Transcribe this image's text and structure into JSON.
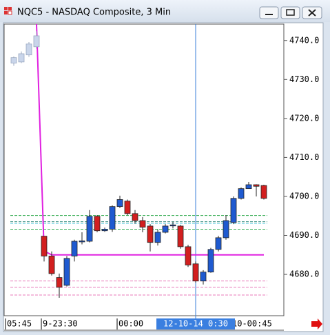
{
  "window_title": "NQC5 - NASDAQ Composite, 3 Min",
  "chart_data": {
    "type": "candlestick",
    "categories": [
      "05:45",
      null,
      null,
      null,
      "9-23:30",
      null,
      null,
      null,
      null,
      null,
      null,
      null,
      null,
      null,
      "00:00",
      null,
      null,
      null,
      null,
      null,
      null,
      null,
      null,
      null,
      null,
      null,
      null,
      null,
      null,
      "10-00:45",
      null,
      null,
      null,
      null
    ],
    "open": [
      4734.2,
      4734.5,
      4736.3,
      4738.4,
      4689.8,
      4684.7,
      4679.2,
      4677.2,
      4684.7,
      4688.4,
      4688.5,
      4694.9,
      4691.2,
      4691.6,
      4697.4,
      4698.8,
      4695.6,
      4693.8,
      4692.4,
      4688.2,
      4690.8,
      4692.5,
      4692.4,
      4687.1,
      4682.7,
      4678.3,
      4680.6,
      4686.4,
      4689.4,
      4693.3,
      4699.5,
      4702.0,
      4703.0,
      4702.8
    ],
    "high": [
      4735.9,
      4737.2,
      4739.6,
      4742.4,
      4689.8,
      4685.9,
      4680.2,
      4684.7,
      4688.9,
      4690.8,
      4696.5,
      4695.2,
      4692.0,
      4697.7,
      4700.2,
      4699.2,
      4696.5,
      4694.7,
      4692.9,
      4691.5,
      4692.9,
      4693.5,
      4692.7,
      4687.6,
      4683.3,
      4681.1,
      4686.8,
      4689.9,
      4695.2,
      4700.0,
      4702.3,
      4703.7,
      4703.1,
      4703.0
    ],
    "low": [
      4733.5,
      4734.2,
      4735.8,
      4737.9,
      4683.3,
      4679.7,
      4674.0,
      4676.9,
      4683.3,
      4687.7,
      4688.2,
      4690.8,
      4690.9,
      4690.9,
      4697.0,
      4695.2,
      4693.0,
      4690.8,
      4685.9,
      4687.4,
      4690.5,
      4691.8,
      4686.6,
      4681.9,
      4677.9,
      4677.4,
      4680.4,
      4685.9,
      4688.9,
      4692.9,
      4699.2,
      4702.6,
      4700.0,
      4699.2
    ],
    "close": [
      4735.6,
      4736.6,
      4739.1,
      4741.2,
      4684.7,
      4680.2,
      4676.7,
      4684.1,
      4688.5,
      4688.6,
      4694.9,
      4691.2,
      4691.6,
      4697.4,
      4699.2,
      4695.6,
      4693.8,
      4692.1,
      4688.2,
      4690.8,
      4692.4,
      4692.7,
      4687.1,
      4682.4,
      4678.3,
      4680.6,
      4686.4,
      4689.4,
      4693.8,
      4699.5,
      4702.0,
      4703.0,
      4702.6,
      4699.5
    ],
    "up_color": "#1f5ad0",
    "down_color": "#d21f1f",
    "pre_session_color": "#c9d5ea",
    "pre_session_candles": 4,
    "indicator": {
      "color": "#e020e0",
      "values": [
        null,
        null,
        null,
        4744.2,
        4686.0,
        4685.0,
        4685.0,
        4685.0,
        4685.0,
        4685.0,
        4685.0,
        4685.0,
        4685.0,
        4685.0,
        4685.0,
        4685.0,
        4685.0,
        4685.0,
        4685.0,
        4685.0,
        4685.0,
        4685.0,
        4685.0,
        4685.0,
        4685.0,
        4685.0,
        4685.0,
        4685.0,
        4685.0,
        4685.0,
        4685.0,
        4685.0,
        4685.0,
        4685.0
      ]
    },
    "levels": [
      {
        "value": 4695.1,
        "color": "#2aa84a"
      },
      {
        "value": 4693.5,
        "color": "#137a6a"
      },
      {
        "value": 4693.0,
        "color": "#7fd8e8"
      },
      {
        "value": 4691.6,
        "color": "#2aa84a"
      },
      {
        "value": 4678.3,
        "color": "#e87ab8"
      },
      {
        "value": 4676.7,
        "color": "#e87ab8"
      },
      {
        "value": 4674.7,
        "color": "#e87ab8"
      }
    ],
    "crosshair_label": "12-10-14 0:30",
    "ylim": [
      4669.4,
      4744.2
    ],
    "yticks": [
      {
        "value": 4740,
        "label": "4740.0"
      },
      {
        "value": 4730,
        "label": "4730.0"
      },
      {
        "value": 4720,
        "label": "4720.0"
      },
      {
        "value": 4710,
        "label": "4710.0"
      },
      {
        "value": 4700,
        "label": "4700.0"
      },
      {
        "value": 4690,
        "label": "4690.0"
      },
      {
        "value": 4680,
        "label": "4680.0"
      }
    ]
  }
}
